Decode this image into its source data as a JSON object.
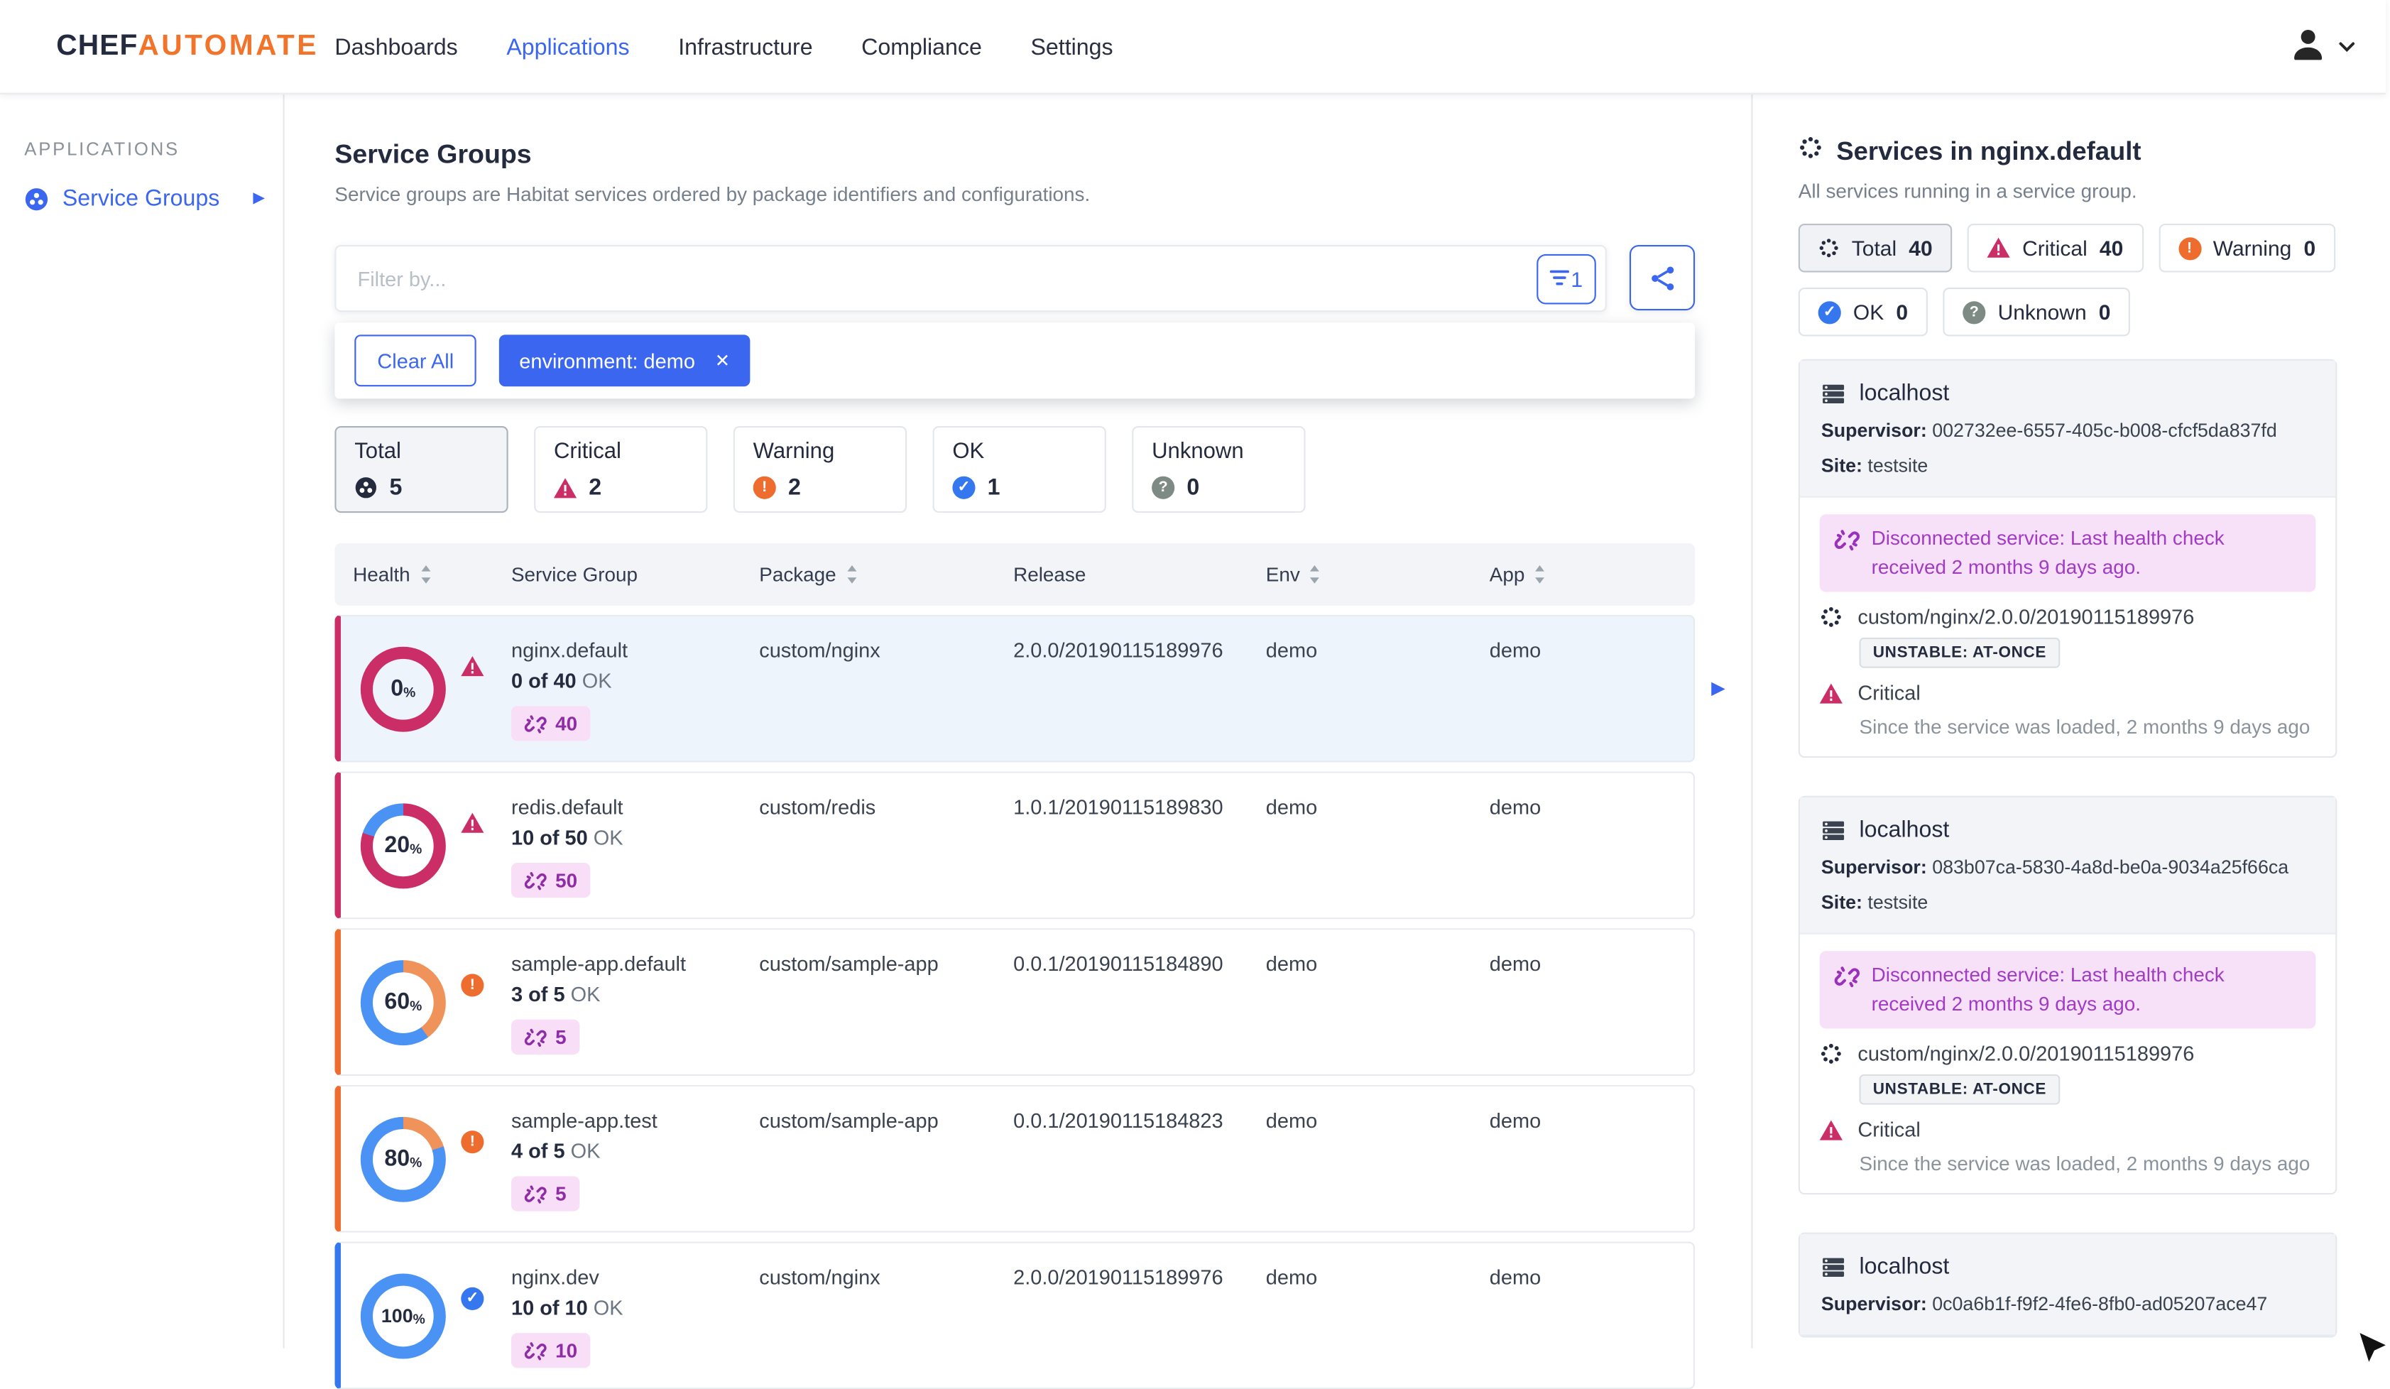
{
  "colors": {
    "brand_orange": "#f1742a",
    "navy": "#252b3f",
    "link_blue": "#3b66f0",
    "critical": "#cb2d66",
    "warning": "#ee6c2e",
    "ok": "#3577ee",
    "unknown": "#7e8a84",
    "disconnected": "#a23bc4",
    "donut_ok": "#4b92f5",
    "donut_warning": "#f0935a",
    "badge_purple": "#8e2da5"
  },
  "nav": {
    "logo_part1": "CHEF",
    "logo_part2": "AUTOMATE",
    "items": [
      {
        "label": "Dashboards",
        "active": false
      },
      {
        "label": "Applications",
        "active": true
      },
      {
        "label": "Infrastructure",
        "active": false
      },
      {
        "label": "Compliance",
        "active": false
      },
      {
        "label": "Settings",
        "active": false
      }
    ]
  },
  "sidebar": {
    "section": "APPLICATIONS",
    "items": [
      {
        "label": "Service Groups",
        "active": true
      }
    ]
  },
  "main": {
    "title": "Service Groups",
    "subtitle": "Service groups are Habitat services ordered by package identifiers and configurations.",
    "filter": {
      "placeholder": "Filter by...",
      "applied_count": "1",
      "clear_all_label": "Clear All",
      "chips": [
        {
          "label": "environment: demo"
        }
      ]
    },
    "tiles": [
      {
        "label": "Total",
        "count": "5",
        "status": "total",
        "selected": true
      },
      {
        "label": "Critical",
        "count": "2",
        "status": "critical",
        "selected": false
      },
      {
        "label": "Warning",
        "count": "2",
        "status": "warning",
        "selected": false
      },
      {
        "label": "OK",
        "count": "1",
        "status": "ok",
        "selected": false
      },
      {
        "label": "Unknown",
        "count": "0",
        "status": "unknown",
        "selected": false
      }
    ],
    "table": {
      "columns": [
        {
          "label": "Health",
          "sortable": true
        },
        {
          "label": "Service Group",
          "sortable": false
        },
        {
          "label": "Package",
          "sortable": true
        },
        {
          "label": "Release",
          "sortable": false
        },
        {
          "label": "Env",
          "sortable": true
        },
        {
          "label": "App",
          "sortable": true
        }
      ],
      "rows": [
        {
          "health_pct": 0,
          "status": "critical",
          "name": "nginx.default",
          "ok_count": "0 of 40",
          "ok_suffix": "OK",
          "link_count": "40",
          "package": "custom/nginx",
          "release": "2.0.0/20190115189976",
          "env": "demo",
          "app": "demo",
          "selected": true
        },
        {
          "health_pct": 20,
          "status": "critical",
          "name": "redis.default",
          "ok_count": "10 of 50",
          "ok_suffix": "OK",
          "link_count": "50",
          "package": "custom/redis",
          "release": "1.0.1/20190115189830",
          "env": "demo",
          "app": "demo",
          "selected": false
        },
        {
          "health_pct": 60,
          "status": "warning",
          "name": "sample-app.default",
          "ok_count": "3 of 5",
          "ok_suffix": "OK",
          "link_count": "5",
          "package": "custom/sample-app",
          "release": "0.0.1/20190115184890",
          "env": "demo",
          "app": "demo",
          "selected": false
        },
        {
          "health_pct": 80,
          "status": "warning",
          "name": "sample-app.test",
          "ok_count": "4 of 5",
          "ok_suffix": "OK",
          "link_count": "5",
          "package": "custom/sample-app",
          "release": "0.0.1/20190115184823",
          "env": "demo",
          "app": "demo",
          "selected": false
        },
        {
          "health_pct": 100,
          "status": "ok",
          "name": "nginx.dev",
          "ok_count": "10 of 10",
          "ok_suffix": "OK",
          "link_count": "10",
          "package": "custom/nginx",
          "release": "2.0.0/20190115189976",
          "env": "demo",
          "app": "demo",
          "selected": false
        }
      ]
    }
  },
  "right_panel": {
    "title": "Services in nginx.default",
    "subtitle": "All services running in a service group.",
    "badges": [
      {
        "label": "Total",
        "count": "40",
        "status": "total",
        "selected": true
      },
      {
        "label": "Critical",
        "count": "40",
        "status": "critical",
        "selected": false
      },
      {
        "label": "Warning",
        "count": "0",
        "status": "warning",
        "selected": false
      },
      {
        "label": "OK",
        "count": "0",
        "status": "ok",
        "selected": false
      },
      {
        "label": "Unknown",
        "count": "0",
        "status": "unknown",
        "selected": false
      }
    ],
    "cards": [
      {
        "host": "localhost",
        "supervisor_label": "Supervisor:",
        "supervisor": "002732ee-6557-405c-b008-cfcf5da837fd",
        "site_label": "Site:",
        "site": "testsite",
        "alert_text": "Disconnected service: Last health check received 2 months 9 days ago.",
        "package": "custom/nginx/2.0.0/20190115189976",
        "update_badge": "UNSTABLE: AT-ONCE",
        "status_label": "Critical",
        "since_text": "Since the service was loaded, 2 months 9 days ago"
      },
      {
        "host": "localhost",
        "supervisor_label": "Supervisor:",
        "supervisor": "083b07ca-5830-4a8d-be0a-9034a25f66ca",
        "site_label": "Site:",
        "site": "testsite",
        "alert_text": "Disconnected service: Last health check received 2 months 9 days ago.",
        "package": "custom/nginx/2.0.0/20190115189976",
        "update_badge": "UNSTABLE: AT-ONCE",
        "status_label": "Critical",
        "since_text": "Since the service was loaded, 2 months 9 days ago"
      },
      {
        "host": "localhost",
        "supervisor_label": "Supervisor:",
        "supervisor": "0c0a6b1f-f9f2-4fe6-8fb0-ad05207ace47"
      }
    ]
  }
}
